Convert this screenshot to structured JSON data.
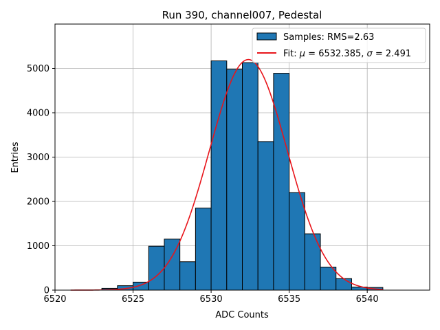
{
  "chart_data": {
    "type": "bar",
    "title": "Run 390, channel007, Pedestal",
    "xlabel": "ADC Counts",
    "ylabel": "Entries",
    "xlim": [
      6520,
      6544
    ],
    "ylim": [
      0,
      6000
    ],
    "x_ticks": [
      6520,
      6525,
      6530,
      6535,
      6540
    ],
    "y_ticks": [
      0,
      1000,
      2000,
      3000,
      4000,
      5000
    ],
    "grid": true,
    "legend_position": "top-right",
    "histogram": {
      "name": "Samples: RMS=2.63",
      "color": "#1f77b4",
      "edge_color": "#000000",
      "bin_edges": [
        6523,
        6524,
        6525,
        6526,
        6527,
        6528,
        6529,
        6530,
        6531,
        6532,
        6533,
        6534,
        6535,
        6536,
        6537,
        6538,
        6539,
        6540,
        6541
      ],
      "counts": [
        40,
        100,
        180,
        990,
        1150,
        640,
        1850,
        5170,
        4980,
        5130,
        3350,
        4890,
        2200,
        1270,
        520,
        260,
        70,
        60
      ]
    },
    "fit": {
      "name_prefix": "Fit: ",
      "name_mu": "μ",
      "name_mid": " = 6532.385, ",
      "name_sigma": "σ",
      "name_suffix": " = 2.491",
      "color": "#e8141a",
      "mu": 6532.385,
      "sigma": 2.491,
      "amplitude": 5200,
      "x_range": [
        6521,
        6541
      ]
    }
  }
}
